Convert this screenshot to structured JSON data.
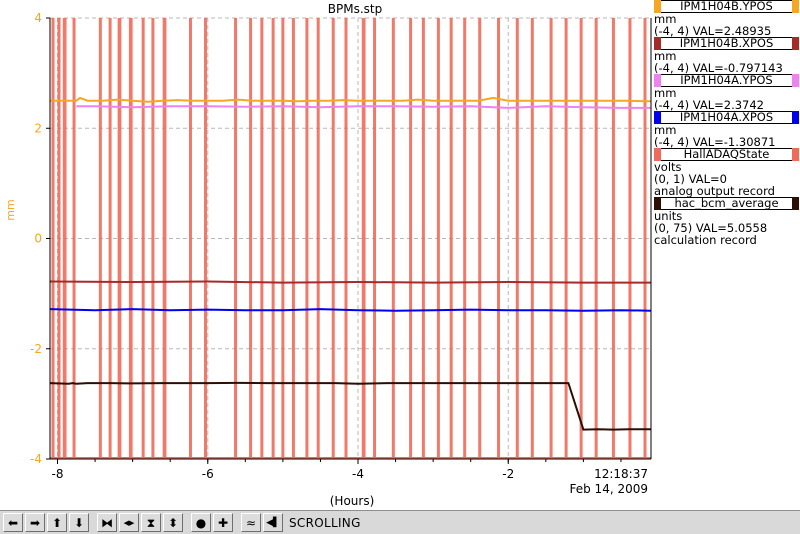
{
  "chart_data": {
    "type": "line",
    "title": "BPMs.stp",
    "xlabel": "(Hours)",
    "ylabel": "mm",
    "xlim": [
      -8.1,
      -0.1
    ],
    "ylim": [
      -4,
      4
    ],
    "x_ticks": [
      -8,
      -6,
      -4,
      -2
    ],
    "y_ticks": [
      4,
      2,
      0,
      -2,
      -4
    ],
    "grid": true,
    "time_label": "12:18:37",
    "date_label": "Feb 14, 2009",
    "series": [
      {
        "name": "IPM1H04B.YPOS",
        "color": "#f5a623",
        "scale_axis": [
          -4,
          4
        ],
        "x": [
          -8.1,
          -7.75,
          -7.7,
          -7.6,
          -7.4,
          -7.2,
          -7.0,
          -6.8,
          -6.6,
          -6.4,
          -6.2,
          -6.0,
          -5.8,
          -5.6,
          -5.4,
          -5.2,
          -5.0,
          -4.8,
          -4.6,
          -4.4,
          -4.2,
          -4.0,
          -3.8,
          -3.6,
          -3.4,
          -3.2,
          -3.0,
          -2.8,
          -2.6,
          -2.4,
          -2.2,
          -2.0,
          -1.8,
          -1.6,
          -1.4,
          -1.2,
          -1.0,
          -0.8,
          -0.6,
          -0.4,
          -0.2,
          -0.1
        ],
        "y": [
          2.5,
          2.5,
          2.55,
          2.5,
          2.5,
          2.52,
          2.5,
          2.48,
          2.5,
          2.51,
          2.5,
          2.5,
          2.5,
          2.52,
          2.5,
          2.5,
          2.5,
          2.49,
          2.5,
          2.5,
          2.51,
          2.5,
          2.5,
          2.5,
          2.5,
          2.52,
          2.5,
          2.5,
          2.5,
          2.5,
          2.55,
          2.5,
          2.5,
          2.5,
          2.5,
          2.5,
          2.5,
          2.5,
          2.5,
          2.5,
          2.49,
          2.49
        ]
      },
      {
        "name": "IPM1H04B.XPOS",
        "color": "#a52a2a",
        "scale_axis": [
          -4,
          4
        ],
        "x": [
          -8.1,
          -7.0,
          -6.0,
          -5.0,
          -4.0,
          -3.0,
          -2.0,
          -1.0,
          -0.1
        ],
        "y": [
          -0.78,
          -0.79,
          -0.78,
          -0.8,
          -0.79,
          -0.8,
          -0.79,
          -0.8,
          -0.8
        ]
      },
      {
        "name": "IPM1H04A.YPOS",
        "color": "#ee82ee",
        "scale_axis": [
          -4,
          4
        ],
        "x": [
          -7.75,
          -7.5,
          -7.0,
          -6.5,
          -6.0,
          -5.5,
          -5.0,
          -4.5,
          -4.0,
          -3.5,
          -3.0,
          -2.5,
          -2.0,
          -1.5,
          -1.0,
          -0.5,
          -0.1
        ],
        "y": [
          2.4,
          2.4,
          2.38,
          2.4,
          2.4,
          2.39,
          2.4,
          2.38,
          2.4,
          2.4,
          2.39,
          2.4,
          2.37,
          2.4,
          2.38,
          2.37,
          2.37
        ]
      },
      {
        "name": "IPM1H04A.XPOS",
        "color": "#0000ee",
        "scale_axis": [
          -4,
          4
        ],
        "x": [
          -8.1,
          -7.5,
          -7.0,
          -6.5,
          -6.0,
          -5.5,
          -5.0,
          -4.5,
          -4.0,
          -3.5,
          -3.0,
          -2.5,
          -2.0,
          -1.5,
          -1.0,
          -0.5,
          -0.1
        ],
        "y": [
          -1.28,
          -1.3,
          -1.28,
          -1.3,
          -1.29,
          -1.3,
          -1.3,
          -1.28,
          -1.3,
          -1.31,
          -1.3,
          -1.29,
          -1.3,
          -1.3,
          -1.31,
          -1.3,
          -1.31
        ]
      },
      {
        "name": "HallADAQState",
        "color": "#ee6a5a",
        "scale_axis": [
          0,
          1
        ],
        "on_intervals": [
          [
            -8.08,
            -8.04
          ],
          [
            -8.0,
            -7.96
          ],
          [
            -7.93,
            -7.88
          ],
          [
            -7.8,
            -7.77
          ],
          [
            -7.45,
            -7.42
          ],
          [
            -7.32,
            -7.3
          ],
          [
            -7.2,
            -7.15
          ],
          [
            -7.05,
            -7.0
          ],
          [
            -6.88,
            -6.85
          ],
          [
            -6.75,
            -6.73
          ],
          [
            -6.6,
            -6.55
          ],
          [
            -6.25,
            -6.22
          ],
          [
            -6.05,
            -6.03
          ],
          [
            -5.65,
            -5.63
          ],
          [
            -5.45,
            -5.42
          ],
          [
            -5.3,
            -5.27
          ],
          [
            -5.15,
            -5.13
          ],
          [
            -5.02,
            -5.0
          ],
          [
            -4.88,
            -4.85
          ],
          [
            -4.7,
            -4.68
          ],
          [
            -4.55,
            -4.52
          ],
          [
            -4.35,
            -4.33
          ],
          [
            -4.18,
            -4.16
          ],
          [
            -3.95,
            -3.9
          ],
          [
            -3.8,
            -3.78
          ],
          [
            -3.55,
            -3.52
          ],
          [
            -3.32,
            -3.3
          ],
          [
            -3.15,
            -3.13
          ],
          [
            -2.95,
            -2.92
          ],
          [
            -2.78,
            -2.76
          ],
          [
            -2.6,
            -2.57
          ],
          [
            -2.4,
            -2.37
          ],
          [
            -2.15,
            -2.12
          ],
          [
            -1.9,
            -1.88
          ],
          [
            -1.7,
            -1.68
          ],
          [
            -1.45,
            -1.43
          ],
          [
            -1.25,
            -1.22
          ],
          [
            -1.05,
            -1.02
          ],
          [
            -0.85,
            -0.83
          ],
          [
            -0.62,
            -0.6
          ],
          [
            -0.4,
            -0.38
          ],
          [
            -0.2,
            -0.18
          ]
        ]
      },
      {
        "name": "hac_bcm_average",
        "color": "#2b0f05",
        "scale_axis": [
          0,
          75
        ],
        "x": [
          -8.1,
          -7.85,
          -7.8,
          -7.75,
          -7.6,
          -7.3,
          -7.0,
          -6.6,
          -6.3,
          -6.0,
          -5.6,
          -5.2,
          -4.9,
          -4.6,
          -4.3,
          -4.0,
          -3.6,
          -3.2,
          -2.9,
          -2.6,
          -2.3,
          -2.0,
          -1.7,
          -1.4,
          -1.2,
          -1.0,
          -0.8,
          -0.6,
          -0.4,
          -0.1
        ],
        "y": [
          12.9,
          12.8,
          12.9,
          12.8,
          12.9,
          12.9,
          12.85,
          12.9,
          12.9,
          12.9,
          12.95,
          12.9,
          12.9,
          12.9,
          12.9,
          12.8,
          12.9,
          12.9,
          12.9,
          12.9,
          12.9,
          12.9,
          12.9,
          12.9,
          12.9,
          5.0,
          5.05,
          5.0,
          5.05,
          5.06
        ]
      }
    ]
  },
  "legend": [
    {
      "name": "IPM1H04B.YPOS",
      "color": "#f5a623",
      "unit": "mm",
      "scale": "(-4, 4) VAL=2.48935",
      "note": ""
    },
    {
      "name": "IPM1H04B.XPOS",
      "color": "#a52a2a",
      "unit": "mm",
      "scale": "(-4, 4) VAL=-0.797143",
      "note": ""
    },
    {
      "name": "IPM1H04A.YPOS",
      "color": "#ee82ee",
      "unit": "mm",
      "scale": "(-4, 4) VAL=2.3742",
      "note": ""
    },
    {
      "name": "IPM1H04A.XPOS",
      "color": "#0000ee",
      "unit": "mm",
      "scale": "(-4, 4) VAL=-1.30871",
      "note": ""
    },
    {
      "name": "HallADAQState",
      "color": "#ee6a5a",
      "unit": "volts",
      "scale": "(0, 1) VAL=0",
      "note": "analog output record"
    },
    {
      "name": "hac_bcm_average",
      "color": "#2b0f05",
      "unit": "units",
      "scale": "(0, 75) VAL=5.0558",
      "note": "calculation record"
    }
  ],
  "toolbar": {
    "status": "SCROLLING",
    "buttons": [
      {
        "name": "scroll-left-button",
        "icon": "arrow-left-icon",
        "glyph": "⬅"
      },
      {
        "name": "scroll-right-button",
        "icon": "arrow-right-icon",
        "glyph": "➡"
      },
      {
        "name": "scroll-up-button",
        "icon": "arrow-up-icon",
        "glyph": "⬆"
      },
      {
        "name": "scroll-down-button",
        "icon": "arrow-down-icon",
        "glyph": "⬇"
      },
      {
        "name": "zoom-in-x-button",
        "icon": "zoom-in-x-icon",
        "glyph": "⧓"
      },
      {
        "name": "zoom-out-x-button",
        "icon": "zoom-out-x-icon",
        "glyph": "◀▶"
      },
      {
        "name": "zoom-in-y-button",
        "icon": "zoom-in-y-icon",
        "glyph": "⧗"
      },
      {
        "name": "zoom-out-y-button",
        "icon": "zoom-out-y-icon",
        "glyph": "⬍"
      },
      {
        "name": "autoscale-button",
        "icon": "circle-icon",
        "glyph": "●"
      },
      {
        "name": "add-button",
        "icon": "plus-icon",
        "glyph": "✚"
      },
      {
        "name": "autozoom-button",
        "icon": "waveform-icon",
        "glyph": "≈"
      },
      {
        "name": "scroll-mode-button",
        "icon": "scroll-mode-icon",
        "glyph": "◀▌"
      }
    ]
  }
}
